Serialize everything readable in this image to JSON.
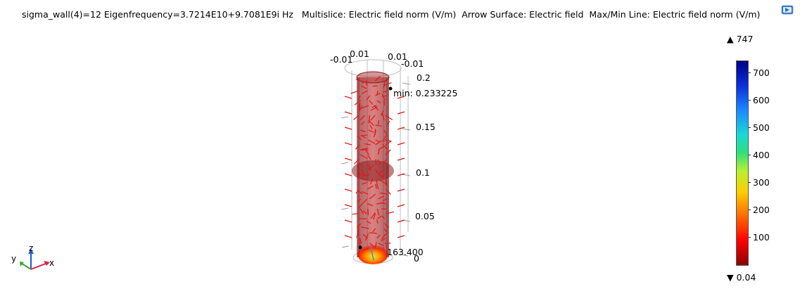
{
  "title": "sigma_wall(4)=12 Eigenfrequency=3.7214E10+9.7081E9i Hz   Multislice: Electric field norm (V/m)  Arrow Surface: Electric field  Max/Min Line: Electric field norm (V/m)",
  "toolbar": {
    "export_icon": "image-export-icon"
  },
  "axis_labels": {
    "x_neg": "-0.01",
    "x_pos_a": "0.01",
    "y_pos": "0.01",
    "y_neg": "-0.01",
    "z_02": "0.2",
    "z_015": "0.15",
    "z_01": "0.1",
    "z_005": "0.05",
    "z_0": "0"
  },
  "annotations": {
    "min_label": "min: 0.233225",
    "max_label": "163.400"
  },
  "colorbar": {
    "max_marker": "▲ 747",
    "min_marker": "▼ 0.04",
    "ticks": [
      "700",
      "600",
      "500",
      "400",
      "300",
      "200",
      "100"
    ],
    "colors": {
      "low": "#8b0000",
      "mid": "#2fe07a",
      "high": "#00008a"
    }
  },
  "triad": {
    "x": "x",
    "y": "y",
    "z": "z",
    "colors": {
      "x": "#e0204a",
      "y": "#3aa030",
      "z": "#1a5acf"
    }
  }
}
